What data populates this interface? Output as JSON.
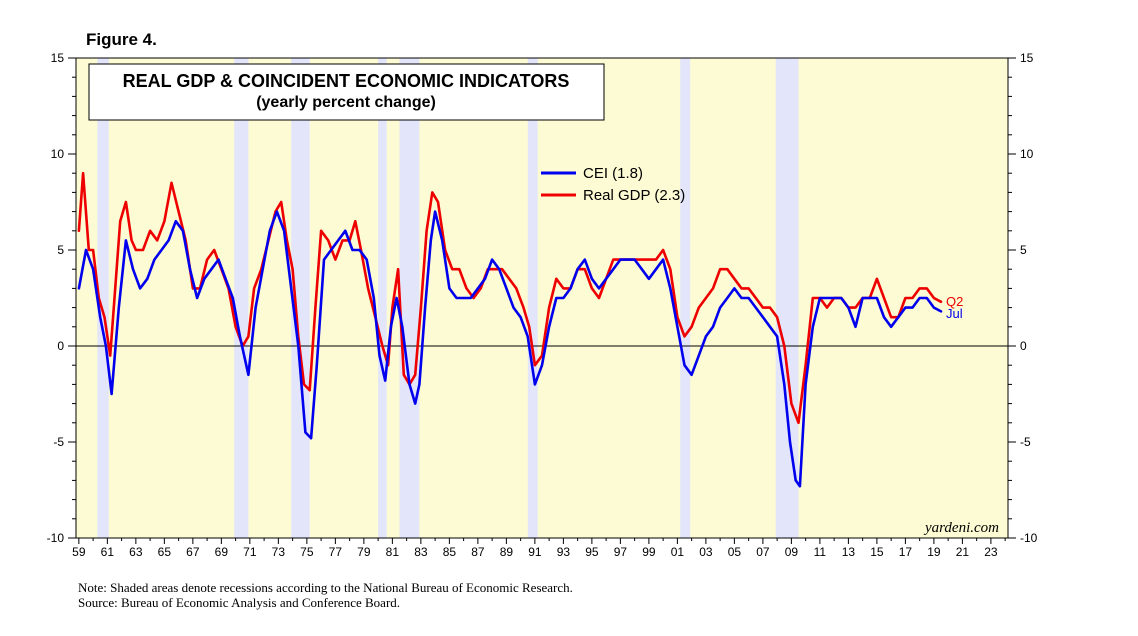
{
  "figure_label": "Figure 4.",
  "note": "Note: Shaded areas denote recessions according to the National Bureau of Economic Research.",
  "source": "Source: Bureau of Economic Analysis and Conference Board.",
  "watermark": "yardeni.com",
  "colors": {
    "cei": "#0000ee",
    "gdp": "#ee0000",
    "plot_background": "#fdfbd3",
    "recession_shade": "#e3e6fa"
  },
  "chart_data": {
    "type": "line",
    "title": "REAL GDP & COINCIDENT ECONOMIC INDICATORS",
    "subtitle": "(yearly percent change)",
    "xlabel": "",
    "ylabel": "",
    "xlim": [
      1958.8,
      2024.2
    ],
    "ylim": [
      -10,
      15
    ],
    "yticks": [
      -10,
      -5,
      0,
      5,
      10,
      15
    ],
    "xtick_labels": [
      "59",
      "61",
      "63",
      "65",
      "67",
      "69",
      "71",
      "73",
      "75",
      "77",
      "79",
      "81",
      "83",
      "85",
      "87",
      "89",
      "91",
      "93",
      "95",
      "97",
      "99",
      "01",
      "03",
      "05",
      "07",
      "09",
      "11",
      "13",
      "15",
      "17",
      "19",
      "21",
      "23"
    ],
    "xtick_years": [
      1959,
      1961,
      1963,
      1965,
      1967,
      1969,
      1971,
      1973,
      1975,
      1977,
      1979,
      1981,
      1983,
      1985,
      1987,
      1989,
      1991,
      1993,
      1995,
      1997,
      1999,
      2001,
      2003,
      2005,
      2007,
      2009,
      2011,
      2013,
      2015,
      2017,
      2019,
      2021,
      2023
    ],
    "recessions": [
      [
        1960.3,
        1961.1
      ],
      [
        1969.9,
        1970.9
      ],
      [
        1973.9,
        1975.2
      ],
      [
        1980.0,
        1980.6
      ],
      [
        1981.5,
        1982.9
      ],
      [
        1990.5,
        1991.2
      ],
      [
        2001.2,
        2001.9
      ],
      [
        2007.9,
        2009.5
      ]
    ],
    "legend": [
      {
        "label": "CEI (1.8)",
        "series": "cei"
      },
      {
        "label": "Real GDP (2.3)",
        "series": "gdp"
      }
    ],
    "end_labels": {
      "gdp": "Q2",
      "cei": "Jul"
    },
    "series": [
      {
        "name": "CEI",
        "key": "cei",
        "x": [
          1959.0,
          1959.5,
          1960.0,
          1960.5,
          1960.9,
          1961.3,
          1961.8,
          1962.3,
          1962.8,
          1963.3,
          1963.8,
          1964.3,
          1964.8,
          1965.3,
          1965.8,
          1966.3,
          1966.8,
          1967.3,
          1967.8,
          1968.3,
          1968.8,
          1969.3,
          1969.8,
          1970.3,
          1970.9,
          1971.4,
          1971.9,
          1972.4,
          1972.9,
          1973.4,
          1973.9,
          1974.4,
          1974.9,
          1975.3,
          1975.7,
          1976.2,
          1976.7,
          1977.2,
          1977.7,
          1978.2,
          1978.7,
          1979.2,
          1979.7,
          1980.1,
          1980.5,
          1980.9,
          1981.3,
          1981.7,
          1982.2,
          1982.6,
          1982.9,
          1983.3,
          1983.7,
          1984.0,
          1984.5,
          1985.0,
          1985.5,
          1986.0,
          1986.5,
          1987.0,
          1987.5,
          1988.0,
          1988.5,
          1989.0,
          1989.5,
          1990.0,
          1990.5,
          1991.0,
          1991.5,
          1992.0,
          1992.5,
          1993.0,
          1993.5,
          1994.0,
          1994.5,
          1995.0,
          1995.5,
          1996.0,
          1996.5,
          1997.0,
          1997.5,
          1998.0,
          1998.5,
          1999.0,
          1999.5,
          2000.0,
          2000.5,
          2001.0,
          2001.5,
          2002.0,
          2002.5,
          2003.0,
          2003.5,
          2004.0,
          2004.5,
          2005.0,
          2005.5,
          2006.0,
          2006.5,
          2007.0,
          2007.5,
          2008.0,
          2008.5,
          2008.9,
          2009.3,
          2009.6,
          2010.0,
          2010.5,
          2011.0,
          2011.5,
          2012.0,
          2012.5,
          2013.0,
          2013.5,
          2014.0,
          2014.5,
          2015.0,
          2015.5,
          2016.0,
          2016.5,
          2017.0,
          2017.5,
          2018.0,
          2018.5,
          2019.0,
          2019.5
        ],
        "values": [
          3.0,
          5.0,
          4.0,
          1.5,
          0.0,
          -2.5,
          2.0,
          5.5,
          4.0,
          3.0,
          3.5,
          4.5,
          5.0,
          5.5,
          6.5,
          6.0,
          4.0,
          2.5,
          3.5,
          4.0,
          4.5,
          3.5,
          2.5,
          0.5,
          -1.5,
          2.0,
          4.0,
          6.0,
          7.0,
          6.0,
          3.0,
          0.0,
          -4.5,
          -4.8,
          -1.0,
          4.5,
          5.0,
          5.5,
          6.0,
          5.0,
          5.0,
          4.5,
          2.5,
          -0.5,
          -1.8,
          1.0,
          2.5,
          1.0,
          -2.0,
          -3.0,
          -2.0,
          2.0,
          5.5,
          7.0,
          5.5,
          3.0,
          2.5,
          2.5,
          2.5,
          3.0,
          3.5,
          4.5,
          4.0,
          3.0,
          2.0,
          1.5,
          0.5,
          -2.0,
          -1.0,
          1.0,
          2.5,
          2.5,
          3.0,
          4.0,
          4.5,
          3.5,
          3.0,
          3.5,
          4.0,
          4.5,
          4.5,
          4.5,
          4.0,
          3.5,
          4.0,
          4.5,
          3.0,
          1.0,
          -1.0,
          -1.5,
          -0.5,
          0.5,
          1.0,
          2.0,
          2.5,
          3.0,
          2.5,
          2.5,
          2.0,
          1.5,
          1.0,
          0.5,
          -2.0,
          -5.0,
          -7.0,
          -7.3,
          -2.0,
          1.0,
          2.5,
          2.5,
          2.5,
          2.5,
          2.0,
          1.0,
          2.5,
          2.5,
          2.5,
          1.5,
          1.0,
          1.5,
          2.0,
          2.0,
          2.5,
          2.5,
          2.0,
          1.8
        ]
      },
      {
        "name": "Real GDP",
        "key": "gdp",
        "x": [
          1959.0,
          1959.3,
          1959.7,
          1960.0,
          1960.4,
          1960.8,
          1961.2,
          1961.5,
          1961.9,
          1962.3,
          1962.7,
          1963.0,
          1963.5,
          1964.0,
          1964.5,
          1965.0,
          1965.5,
          1966.0,
          1966.5,
          1967.0,
          1967.5,
          1968.0,
          1968.5,
          1969.0,
          1969.5,
          1970.0,
          1970.5,
          1970.9,
          1971.3,
          1971.8,
          1972.3,
          1972.8,
          1973.2,
          1973.6,
          1974.0,
          1974.4,
          1974.8,
          1975.2,
          1975.6,
          1976.0,
          1976.5,
          1977.0,
          1977.5,
          1978.0,
          1978.4,
          1978.8,
          1979.3,
          1979.8,
          1980.3,
          1980.7,
          1981.0,
          1981.4,
          1981.8,
          1982.2,
          1982.6,
          1983.0,
          1983.4,
          1983.8,
          1984.2,
          1984.7,
          1985.2,
          1985.7,
          1986.2,
          1986.7,
          1987.2,
          1987.7,
          1988.2,
          1988.7,
          1989.2,
          1989.7,
          1990.2,
          1990.6,
          1991.0,
          1991.5,
          1992.0,
          1992.5,
          1993.0,
          1993.5,
          1994.0,
          1994.5,
          1995.0,
          1995.5,
          1996.0,
          1996.5,
          1997.0,
          1997.5,
          1998.0,
          1998.5,
          1999.0,
          1999.5,
          2000.0,
          2000.5,
          2001.0,
          2001.5,
          2002.0,
          2002.5,
          2003.0,
          2003.5,
          2004.0,
          2004.5,
          2005.0,
          2005.5,
          2006.0,
          2006.5,
          2007.0,
          2007.5,
          2008.0,
          2008.5,
          2009.0,
          2009.5,
          2010.0,
          2010.5,
          2011.0,
          2011.5,
          2012.0,
          2012.5,
          2013.0,
          2013.5,
          2014.0,
          2014.5,
          2015.0,
          2015.5,
          2016.0,
          2016.5,
          2017.0,
          2017.5,
          2018.0,
          2018.5,
          2019.0,
          2019.5
        ],
        "values": [
          6.0,
          9.0,
          5.0,
          5.0,
          2.5,
          1.5,
          -0.5,
          2.5,
          6.5,
          7.5,
          5.5,
          5.0,
          5.0,
          6.0,
          5.5,
          6.5,
          8.5,
          7.0,
          5.5,
          3.0,
          3.0,
          4.5,
          5.0,
          4.0,
          3.0,
          1.0,
          0.0,
          0.5,
          3.0,
          4.0,
          5.5,
          7.0,
          7.5,
          5.5,
          4.0,
          0.5,
          -2.0,
          -2.3,
          2.0,
          6.0,
          5.5,
          4.5,
          5.5,
          5.5,
          6.5,
          5.0,
          3.0,
          1.5,
          0.0,
          -1.0,
          2.0,
          4.0,
          -1.5,
          -2.0,
          -1.5,
          2.0,
          6.0,
          8.0,
          7.5,
          5.0,
          4.0,
          4.0,
          3.0,
          2.5,
          3.0,
          4.0,
          4.0,
          4.0,
          3.5,
          3.0,
          2.0,
          1.0,
          -1.0,
          -0.5,
          2.0,
          3.5,
          3.0,
          3.0,
          4.0,
          4.0,
          3.0,
          2.5,
          3.5,
          4.5,
          4.5,
          4.5,
          4.5,
          4.5,
          4.5,
          4.5,
          5.0,
          4.0,
          1.5,
          0.5,
          1.0,
          2.0,
          2.5,
          3.0,
          4.0,
          4.0,
          3.5,
          3.0,
          3.0,
          2.5,
          2.0,
          2.0,
          1.5,
          0.0,
          -3.0,
          -4.0,
          -1.0,
          2.5,
          2.5,
          2.0,
          2.5,
          2.5,
          2.0,
          2.0,
          2.5,
          2.5,
          3.5,
          2.5,
          1.5,
          1.5,
          2.5,
          2.5,
          3.0,
          3.0,
          2.5,
          2.3
        ]
      }
    ]
  }
}
